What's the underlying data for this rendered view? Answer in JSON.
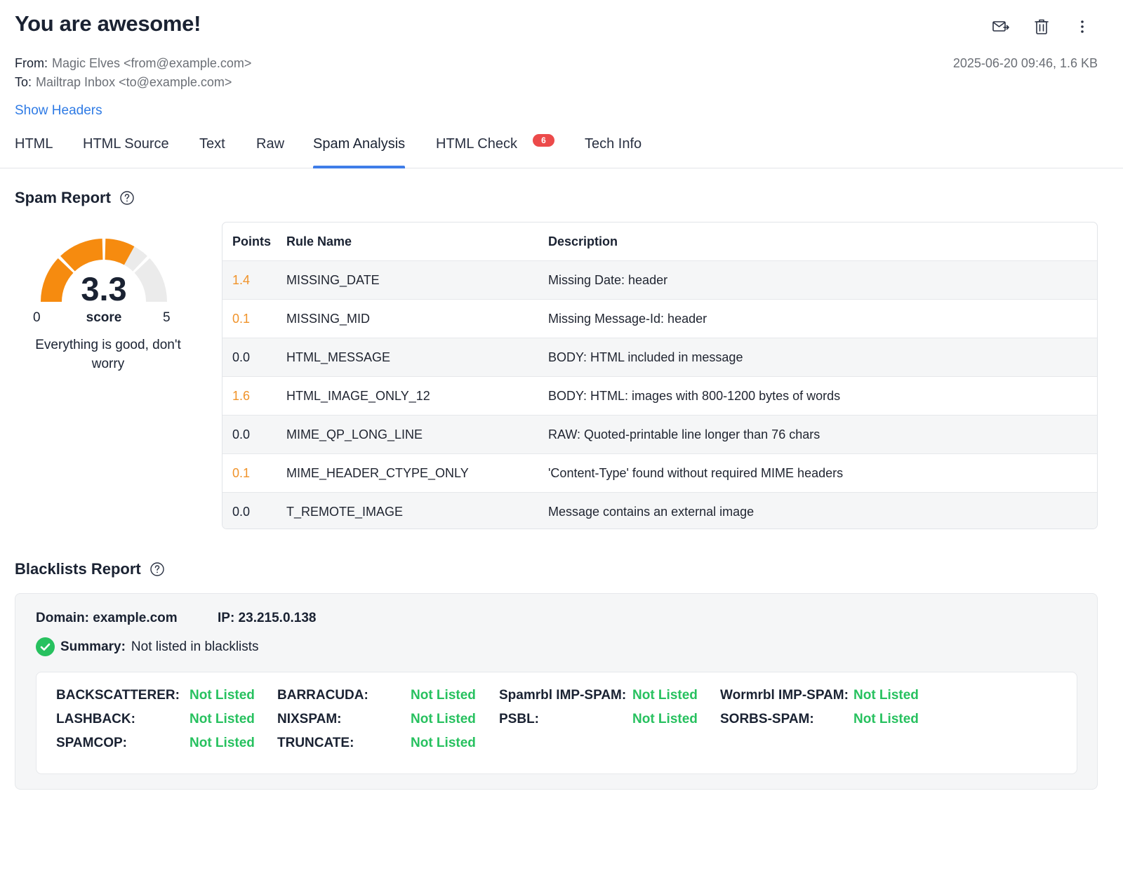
{
  "email": {
    "subject": "You are awesome!",
    "from_label": "From:",
    "from": "Magic Elves <from@example.com>",
    "to_label": "To:",
    "to": "Mailtrap Inbox <to@example.com>",
    "timestamp": "2025-06-20 09:46, 1.6 KB",
    "show_headers": "Show Headers"
  },
  "toolbar": {
    "icons": [
      "forward-mail-icon",
      "trash-icon",
      "more-vertical-icon"
    ]
  },
  "tabs": [
    {
      "label": "HTML"
    },
    {
      "label": "HTML Source"
    },
    {
      "label": "Text"
    },
    {
      "label": "Raw"
    },
    {
      "label": "Spam Analysis",
      "active": true
    },
    {
      "label": "HTML Check",
      "badge": "6"
    },
    {
      "label": "Tech Info"
    }
  ],
  "spam_report": {
    "title": "Spam Report",
    "score": "3.3",
    "score_value": 3.3,
    "min": "0",
    "max": "5",
    "score_label": "score",
    "message": "Everything is good, don't worry",
    "colors": {
      "filled": "#f68b0f",
      "empty": "#ebebeb"
    },
    "columns": [
      "Points",
      "Rule Name",
      "Description"
    ],
    "rows": [
      {
        "points": "1.4",
        "rule": "MISSING_DATE",
        "description": "Missing Date: header",
        "highlight": true
      },
      {
        "points": "0.1",
        "rule": "MISSING_MID",
        "description": "Missing Message-Id: header",
        "highlight": true
      },
      {
        "points": "0.0",
        "rule": "HTML_MESSAGE",
        "description": "BODY: HTML included in message",
        "highlight": false
      },
      {
        "points": "1.6",
        "rule": "HTML_IMAGE_ONLY_12",
        "description": "BODY: HTML: images with 800-1200 bytes of words",
        "highlight": true
      },
      {
        "points": "0.0",
        "rule": "MIME_QP_LONG_LINE",
        "description": "RAW: Quoted-printable line longer than 76 chars",
        "highlight": false
      },
      {
        "points": "0.1",
        "rule": "MIME_HEADER_CTYPE_ONLY",
        "description": "'Content-Type' found without required MIME headers",
        "highlight": true
      },
      {
        "points": "0.0",
        "rule": "T_REMOTE_IMAGE",
        "description": "Message contains an external image",
        "highlight": false
      }
    ]
  },
  "blacklists": {
    "title": "Blacklists Report",
    "domain": "Domain: example.com",
    "ip": "IP: 23.215.0.138",
    "summary_label": "Summary:",
    "summary": "Not listed in blacklists",
    "status_color": "#27c15f",
    "lists": [
      {
        "name": "BACKSCATTERER:",
        "status": "Not Listed"
      },
      {
        "name": "BARRACUDA:",
        "status": "Not Listed"
      },
      {
        "name": "Spamrbl IMP-SPAM:",
        "status": "Not Listed"
      },
      {
        "name": "Wormrbl IMP-SPAM:",
        "status": "Not Listed"
      },
      {
        "name": "LASHBACK:",
        "status": "Not Listed"
      },
      {
        "name": "NIXSPAM:",
        "status": "Not Listed"
      },
      {
        "name": "PSBL:",
        "status": "Not Listed"
      },
      {
        "name": "SORBS-SPAM:",
        "status": "Not Listed"
      },
      {
        "name": "SPAMCOP:",
        "status": "Not Listed"
      },
      {
        "name": "TRUNCATE:",
        "status": "Not Listed"
      }
    ]
  }
}
